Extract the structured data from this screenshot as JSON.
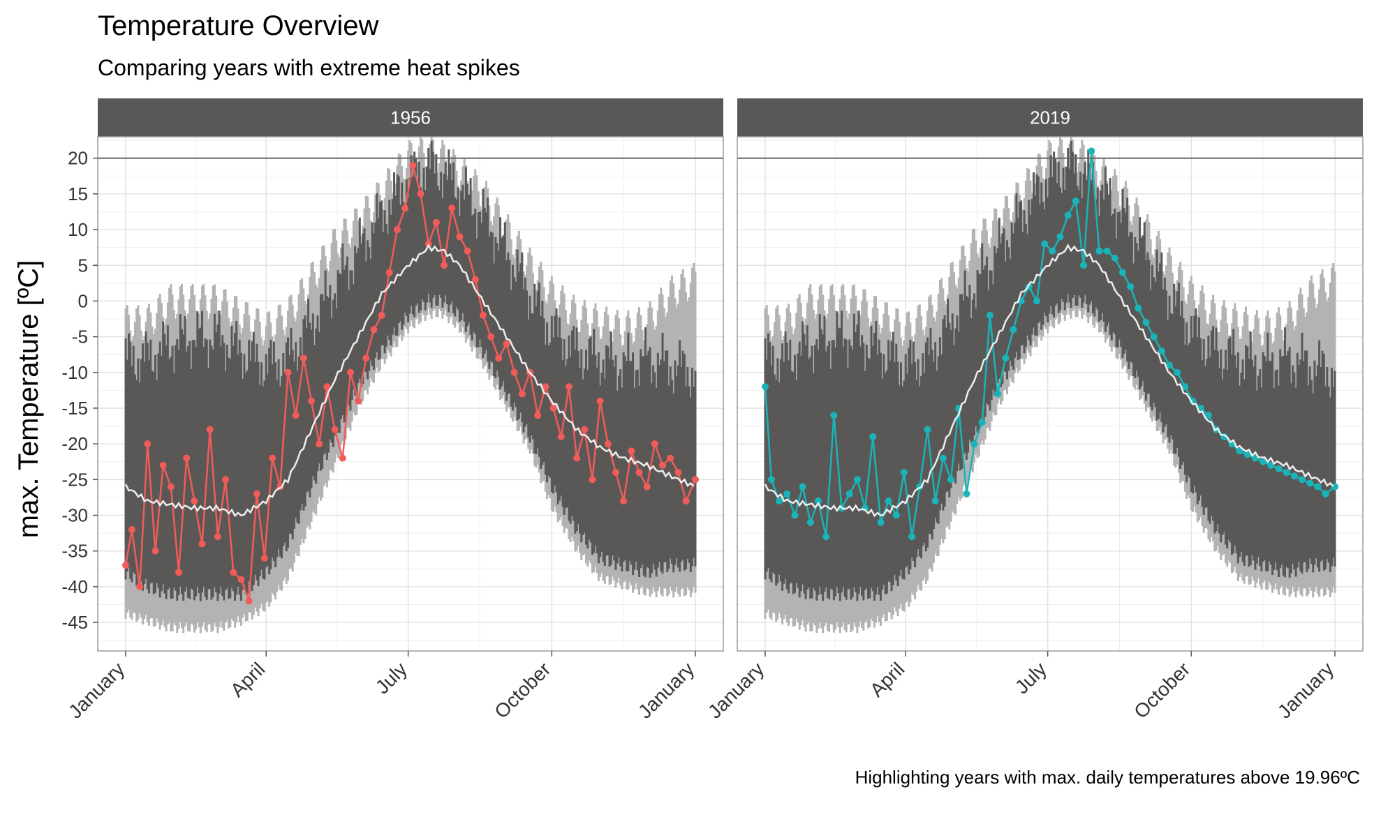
{
  "chart_data": {
    "type": "line",
    "title": "Temperature Overview",
    "subtitle": "Comparing years with extreme heat spikes",
    "ylabel": "max. Temperature [ºC]",
    "caption": "Highlighting years with max. daily temperatures above 19.96ºC",
    "ylim": [
      -49,
      23
    ],
    "yticks": [
      20,
      15,
      10,
      5,
      0,
      -5,
      -10,
      -15,
      -20,
      -25,
      -30,
      -35,
      -40,
      -45
    ],
    "xticks": [
      {
        "label": "January",
        "day": 1
      },
      {
        "label": "April",
        "day": 91
      },
      {
        "label": "July",
        "day": 182
      },
      {
        "label": "October",
        "day": 274
      },
      {
        "label": "January",
        "day": 366
      }
    ],
    "reference_line": 20,
    "grid": true,
    "colors": {
      "strip": "#5a5857",
      "band": "#5a5857",
      "envelope": "#b3b3b3",
      "mean_line": "#eeeeee",
      "grid": "#e3e3e3",
      "panel_border": "#9a9a9a",
      "hline": "#666666",
      "highlight_1956": "#f15c59",
      "highlight_2019": "#19b4b9"
    },
    "mean_curve": {
      "day": [
        1,
        15,
        30,
        45,
        60,
        75,
        91,
        105,
        120,
        135,
        150,
        165,
        182,
        195,
        205,
        215,
        230,
        245,
        260,
        274,
        290,
        305,
        320,
        335,
        350,
        366
      ],
      "value": [
        -26,
        -28,
        -28.5,
        -29,
        -29,
        -30,
        -28,
        -25,
        -18,
        -11,
        -5,
        1,
        5,
        7.5,
        7,
        5,
        0,
        -5,
        -10,
        -14,
        -18,
        -20.5,
        -22,
        -23,
        -24.5,
        -26
      ]
    },
    "band": {
      "day": [
        1,
        15,
        30,
        45,
        60,
        75,
        91,
        105,
        120,
        135,
        150,
        165,
        182,
        195,
        205,
        215,
        230,
        245,
        260,
        274,
        290,
        305,
        320,
        335,
        350,
        366
      ],
      "low": [
        -37,
        -39,
        -40,
        -40,
        -40,
        -40,
        -37,
        -33,
        -25,
        -18,
        -11,
        -6,
        -1,
        1,
        1,
        -1,
        -6,
        -12,
        -18,
        -25,
        -31,
        -35,
        -36,
        -37,
        -36,
        -36
      ],
      "high": [
        -8,
        -8,
        -6,
        -5,
        -5,
        -7,
        -9,
        -8,
        -3,
        2,
        7,
        12,
        17,
        19,
        18,
        16,
        12,
        7,
        1,
        -4,
        -7,
        -8,
        -9,
        -8,
        -9,
        -10
      ],
      "envelope_low": [
        -43,
        -44,
        -45,
        -45,
        -45,
        -44,
        -42,
        -38,
        -30,
        -22,
        -14,
        -8,
        -3,
        -1,
        -1,
        -3,
        -8,
        -14,
        -20,
        -28,
        -34,
        -38,
        -39,
        -40,
        -40,
        -40
      ],
      "envelope_high": [
        -3,
        -3,
        0,
        0,
        0,
        -2,
        -4,
        -2,
        3,
        8,
        11,
        15,
        20,
        21,
        20,
        18,
        15,
        10,
        5,
        1,
        -2,
        -3,
        -4,
        -3,
        1,
        3
      ]
    },
    "panels": [
      {
        "year": "1956",
        "series": [
          {
            "day": [
              1,
              5,
              10,
              15,
              20,
              25,
              30,
              35,
              40,
              45,
              50,
              55,
              60,
              65,
              70,
              75,
              80,
              85,
              90,
              95,
              100,
              105,
              110,
              115,
              120,
              125,
              130,
              135,
              140,
              145,
              150,
              155,
              160,
              165,
              170,
              175,
              180,
              185,
              190,
              195,
              200,
              205,
              210,
              215,
              220,
              225,
              230,
              235,
              240,
              245,
              250,
              255,
              260,
              265,
              270,
              275,
              280,
              285,
              290,
              295,
              300,
              305,
              310,
              315,
              320,
              325,
              330,
              335,
              340,
              345,
              350,
              355,
              360,
              366
            ],
            "value": [
              -37,
              -32,
              -40,
              -20,
              -35,
              -23,
              -26,
              -38,
              -22,
              -28,
              -34,
              -18,
              -33,
              -25,
              -38,
              -39,
              -42,
              -27,
              -36,
              -22,
              -26,
              -10,
              -16,
              -8,
              -14,
              -20,
              -12,
              -18,
              -22,
              -10,
              -14,
              -8,
              -4,
              -2,
              4,
              10,
              13,
              19,
              15,
              8,
              11,
              5,
              13,
              9,
              7,
              3,
              -2,
              -5,
              -8,
              -6,
              -10,
              -13,
              -10,
              -16,
              -12,
              -15,
              -19,
              -12,
              -22,
              -18,
              -25,
              -14,
              -20,
              -24,
              -28,
              -21,
              -24,
              -26,
              -20,
              -23,
              -22,
              -24,
              -28,
              -25
            ]
          }
        ]
      },
      {
        "year": "2019",
        "series": [
          {
            "day": [
              1,
              5,
              10,
              15,
              20,
              25,
              30,
              35,
              40,
              45,
              50,
              55,
              60,
              65,
              70,
              75,
              80,
              85,
              90,
              95,
              100,
              105,
              110,
              115,
              120,
              125,
              130,
              135,
              140,
              145,
              150,
              155,
              160,
              165,
              170,
              175,
              180,
              185,
              190,
              195,
              200,
              205,
              210,
              215,
              220,
              225,
              230,
              235,
              240,
              245,
              250,
              255,
              260,
              265,
              270,
              275,
              280,
              285,
              290,
              295,
              300,
              305,
              310,
              315,
              320,
              325,
              330,
              335,
              340,
              345,
              350,
              355,
              360,
              366
            ],
            "value": [
              -12,
              -25,
              -28,
              -27,
              -30,
              -26,
              -31,
              -28,
              -33,
              -16,
              -29,
              -27,
              -25,
              -29,
              -19,
              -31,
              -28,
              -30,
              -24,
              -33,
              -26,
              -18,
              -28,
              -22,
              -25,
              -15,
              -27,
              -20,
              -17,
              -2,
              -13,
              -8,
              -4,
              0,
              2,
              0,
              8,
              7,
              9,
              12,
              14,
              5,
              21,
              7,
              7,
              6,
              4,
              2,
              -1,
              -3,
              -5,
              -7,
              -9,
              -10,
              -12,
              -14,
              -15,
              -16,
              -18,
              -19,
              -20,
              -21,
              -21.5,
              -22,
              -22.5,
              -23,
              -23.5,
              -24,
              -24.5,
              -25,
              -25.5,
              -26,
              -27,
              -26
            ]
          }
        ]
      }
    ]
  }
}
